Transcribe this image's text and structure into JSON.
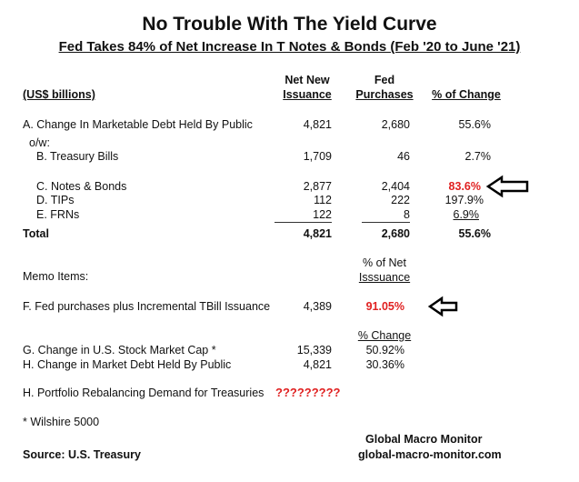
{
  "header": {
    "title": "No Trouble With The Yield Curve",
    "subtitle": "Fed Takes 84% of Net Increase In T Notes & Bonds (Feb '20 to June '21)"
  },
  "table": {
    "unit_label": "(US$ billions)",
    "columns": [
      [
        "Net New",
        "Issuance"
      ],
      [
        "Fed",
        "Purchases"
      ],
      [
        "% of Change"
      ]
    ],
    "rows": [
      {
        "label": "A. Change In Marketable Debt Held By Public",
        "cells": [
          "4,821",
          "2,680",
          "55.6%"
        ]
      },
      {
        "label": "o/w:"
      },
      {
        "label": "B. Treasury Bills",
        "cells": [
          "1,709",
          "46",
          "2.7%"
        ]
      },
      {
        "label": "C. Notes & Bonds",
        "cells": [
          "2,877",
          "2,404",
          "83.6%"
        ]
      },
      {
        "label": "D. TIPs",
        "cells": [
          "112",
          "222",
          "197.9%"
        ]
      },
      {
        "label": "E. FRNs",
        "cells": [
          "122",
          "8",
          "6.9%"
        ]
      },
      {
        "label": "Total",
        "cells": [
          "4,821",
          "2,680",
          "55.6%"
        ]
      }
    ]
  },
  "memo": {
    "title": "Memo Items:",
    "share_header": [
      "% of Net",
      "Isssuance"
    ],
    "share_rows": [
      {
        "label": "F. Fed purchases plus Incremental TBill Issuance",
        "cells": [
          "4,389",
          "91.05%"
        ]
      }
    ],
    "change_header": "% Change",
    "change_rows": [
      {
        "label": "G. Change in U.S. Stock Market Cap *",
        "cells": [
          "15,339",
          "50.92%"
        ]
      },
      {
        "label": "H. Change in Market Debt Held By Public",
        "cells": [
          "4,821",
          "30.36%"
        ]
      }
    ],
    "question": {
      "label": "H. Portfolio Rebalancing Demand for Treasuries",
      "value": "?????????"
    }
  },
  "footer": {
    "note": "* Wilshire 5000",
    "source": "Source:  U.S. Treasury",
    "brand": [
      "Global Macro Monitor",
      "global-macro-monitor.com"
    ]
  }
}
